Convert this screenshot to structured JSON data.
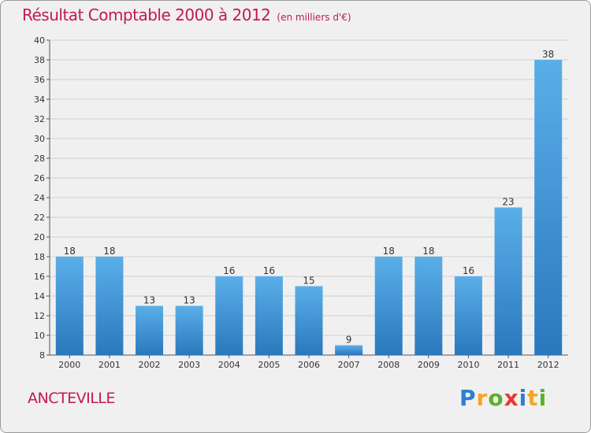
{
  "chart_data": {
    "type": "bar",
    "title": "Résultat Comptable 2000 à 2012",
    "unit_label": "(en milliers d'€)",
    "categories": [
      "2000",
      "2001",
      "2002",
      "2003",
      "2004",
      "2005",
      "2006",
      "2007",
      "2008",
      "2009",
      "2010",
      "2011",
      "2012"
    ],
    "values": [
      18,
      18,
      13,
      13,
      16,
      16,
      15,
      9,
      18,
      18,
      16,
      23,
      38
    ],
    "ylim": [
      8,
      40
    ],
    "yticks": [
      8,
      10,
      12,
      14,
      16,
      18,
      20,
      22,
      24,
      26,
      28,
      30,
      32,
      34,
      36,
      38,
      40
    ],
    "grid": true,
    "xlabel": "",
    "ylabel": ""
  },
  "commune": "ANCTEVILLE",
  "logo": {
    "letters": [
      "P",
      "r",
      "o",
      "x",
      "i",
      "t",
      "i"
    ],
    "colors": [
      "#2e7fd0",
      "#f5a623",
      "#5ab031",
      "#e53935",
      "#2e7fd0",
      "#f5a623",
      "#5ab031"
    ]
  }
}
